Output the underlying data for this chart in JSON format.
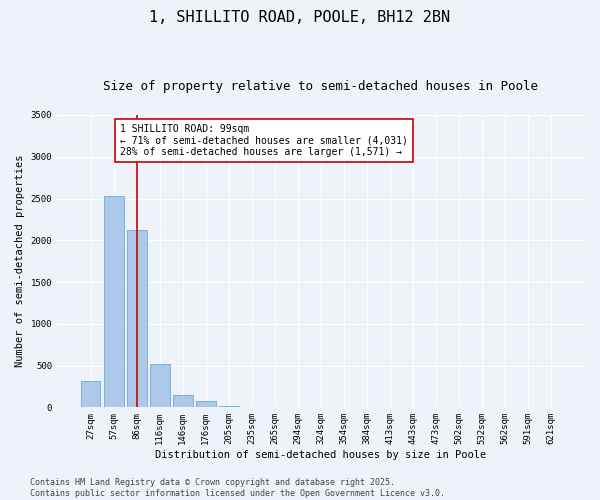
{
  "title": "1, SHILLITO ROAD, POOLE, BH12 2BN",
  "subtitle": "Size of property relative to semi-detached houses in Poole",
  "xlabel": "Distribution of semi-detached houses by size in Poole",
  "ylabel": "Number of semi-detached properties",
  "bar_color": "#adc9e9",
  "bar_edge_color": "#6aaad4",
  "background_color": "#eef2f9",
  "grid_color": "#ffffff",
  "categories": [
    "27sqm",
    "57sqm",
    "86sqm",
    "116sqm",
    "146sqm",
    "176sqm",
    "205sqm",
    "235sqm",
    "265sqm",
    "294sqm",
    "324sqm",
    "354sqm",
    "384sqm",
    "413sqm",
    "443sqm",
    "473sqm",
    "502sqm",
    "532sqm",
    "562sqm",
    "591sqm",
    "621sqm"
  ],
  "values": [
    315,
    2530,
    2120,
    520,
    145,
    75,
    20,
    0,
    0,
    0,
    0,
    0,
    0,
    0,
    0,
    0,
    0,
    0,
    0,
    0,
    0
  ],
  "ylim": [
    0,
    3500
  ],
  "yticks": [
    0,
    500,
    1000,
    1500,
    2000,
    2500,
    3000,
    3500
  ],
  "property_line_x": 2.0,
  "annotation_text": "1 SHILLITO ROAD: 99sqm\n← 71% of semi-detached houses are smaller (4,031)\n28% of semi-detached houses are larger (1,571) →",
  "red_line_color": "#cc0000",
  "footer_text": "Contains HM Land Registry data © Crown copyright and database right 2025.\nContains public sector information licensed under the Open Government Licence v3.0.",
  "title_fontsize": 11,
  "subtitle_fontsize": 9,
  "axis_fontsize": 7.5,
  "tick_fontsize": 6.5,
  "annotation_fontsize": 7,
  "footer_fontsize": 6
}
